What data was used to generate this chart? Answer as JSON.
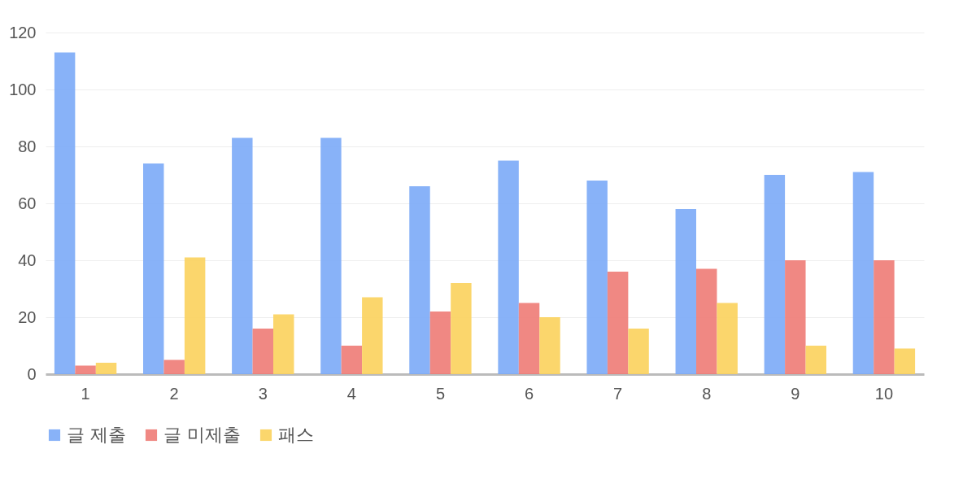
{
  "chart_data": {
    "type": "bar",
    "categories": [
      "1",
      "2",
      "3",
      "4",
      "5",
      "6",
      "7",
      "8",
      "9",
      "10"
    ],
    "series": [
      {
        "name": "글 제출",
        "color": "#7baaf7",
        "values": [
          113,
          74,
          83,
          83,
          66,
          75,
          68,
          58,
          70,
          71
        ]
      },
      {
        "name": "글 미제출",
        "color": "#ee7b75",
        "values": [
          3,
          5,
          16,
          10,
          22,
          25,
          36,
          37,
          40,
          40
        ]
      },
      {
        "name": "패스",
        "color": "#fbd15c",
        "values": [
          4,
          41,
          21,
          27,
          32,
          20,
          16,
          25,
          10,
          9
        ]
      }
    ],
    "ylim": [
      0,
      120
    ],
    "yticks": [
      0,
      20,
      40,
      60,
      80,
      100,
      120
    ],
    "grid": "y",
    "legend": "bottom"
  }
}
